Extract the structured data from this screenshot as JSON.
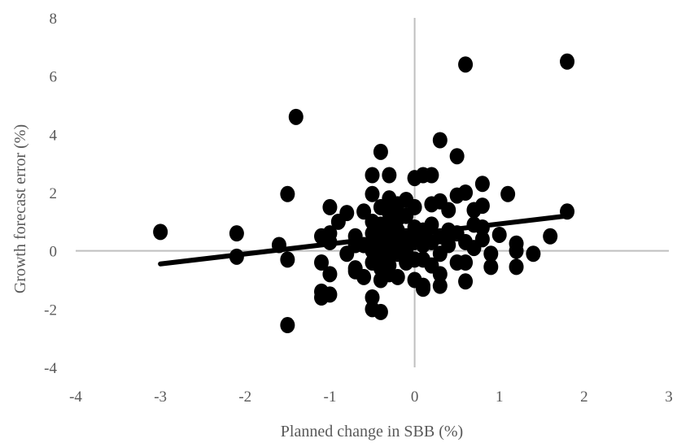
{
  "chart_data": {
    "type": "scatter",
    "title": "",
    "xlabel": "Planned change in SBB (%)",
    "ylabel": "Growth forecast error (%)",
    "xlim": [
      -4,
      3
    ],
    "ylim": [
      -4,
      8
    ],
    "xticks": [
      "-4",
      "-3",
      "-2",
      "-1",
      "0",
      "1",
      "2",
      "3"
    ],
    "yticks": [
      "-4",
      "-2",
      "0",
      "2",
      "4",
      "6",
      "8"
    ],
    "axis_color": "#bfbfbf",
    "marker_color": "#000000",
    "grid": false,
    "legend": "none",
    "trendline": {
      "x": [
        -3.0,
        1.8
      ],
      "y": [
        -0.45,
        1.2
      ]
    },
    "series": [
      {
        "points": [
          [
            -3.0,
            0.65
          ],
          [
            -2.1,
            0.6
          ],
          [
            -2.1,
            -0.2
          ],
          [
            -1.6,
            0.2
          ],
          [
            -1.5,
            -0.3
          ],
          [
            -1.5,
            1.95
          ],
          [
            -1.5,
            -2.55
          ],
          [
            -1.4,
            4.6
          ],
          [
            -1.1,
            0.5
          ],
          [
            -1.1,
            -0.4
          ],
          [
            -1.1,
            -1.4
          ],
          [
            -1.1,
            -1.6
          ],
          [
            -1.0,
            0.6
          ],
          [
            -1.0,
            0.3
          ],
          [
            -1.0,
            1.5
          ],
          [
            -1.0,
            -0.8
          ],
          [
            -1.0,
            -1.5
          ],
          [
            -0.9,
            1.0
          ],
          [
            -0.8,
            1.3
          ],
          [
            -0.8,
            -0.1
          ],
          [
            -0.7,
            0.5
          ],
          [
            -0.7,
            -0.6
          ],
          [
            -0.7,
            -0.7
          ],
          [
            -0.7,
            0.2
          ],
          [
            -0.6,
            1.35
          ],
          [
            -0.6,
            0.2
          ],
          [
            -0.6,
            -0.9
          ],
          [
            -0.5,
            2.6
          ],
          [
            -0.5,
            1.95
          ],
          [
            -0.5,
            1.0
          ],
          [
            -0.5,
            0.6
          ],
          [
            -0.5,
            0.3
          ],
          [
            -0.5,
            0.0
          ],
          [
            -0.5,
            -0.4
          ],
          [
            -0.5,
            -1.6
          ],
          [
            -0.5,
            -2.0
          ],
          [
            -0.4,
            3.4
          ],
          [
            -0.4,
            1.5
          ],
          [
            -0.4,
            0.9
          ],
          [
            -0.4,
            0.5
          ],
          [
            -0.4,
            0.2
          ],
          [
            -0.4,
            -0.2
          ],
          [
            -0.4,
            -0.6
          ],
          [
            -0.4,
            -1.0
          ],
          [
            -0.4,
            -2.1
          ],
          [
            -0.3,
            2.6
          ],
          [
            -0.3,
            1.8
          ],
          [
            -0.3,
            1.3
          ],
          [
            -0.3,
            0.8
          ],
          [
            -0.3,
            0.4
          ],
          [
            -0.3,
            0.0
          ],
          [
            -0.3,
            -0.5
          ],
          [
            -0.3,
            -0.8
          ],
          [
            -0.2,
            1.6
          ],
          [
            -0.2,
            1.1
          ],
          [
            -0.2,
            0.7
          ],
          [
            -0.2,
            0.3
          ],
          [
            -0.2,
            -0.1
          ],
          [
            -0.2,
            -0.9
          ],
          [
            -0.1,
            1.75
          ],
          [
            -0.1,
            1.2
          ],
          [
            -0.1,
            0.5
          ],
          [
            -0.1,
            0.0
          ],
          [
            -0.1,
            -0.4
          ],
          [
            0.0,
            2.5
          ],
          [
            0.0,
            1.5
          ],
          [
            0.0,
            0.8
          ],
          [
            0.0,
            0.3
          ],
          [
            0.0,
            -0.3
          ],
          [
            0.0,
            -1.0
          ],
          [
            0.1,
            2.6
          ],
          [
            0.1,
            0.7
          ],
          [
            0.1,
            0.2
          ],
          [
            0.1,
            -0.3
          ],
          [
            0.1,
            -1.2
          ],
          [
            0.1,
            -1.3
          ],
          [
            0.2,
            2.6
          ],
          [
            0.2,
            1.6
          ],
          [
            0.2,
            0.9
          ],
          [
            0.2,
            0.3
          ],
          [
            0.2,
            -0.5
          ],
          [
            0.3,
            3.8
          ],
          [
            0.3,
            1.7
          ],
          [
            0.3,
            0.5
          ],
          [
            0.3,
            -0.1
          ],
          [
            0.3,
            -0.8
          ],
          [
            0.3,
            -1.2
          ],
          [
            0.4,
            1.4
          ],
          [
            0.4,
            0.7
          ],
          [
            0.4,
            0.2
          ],
          [
            0.5,
            3.25
          ],
          [
            0.5,
            1.9
          ],
          [
            0.5,
            0.6
          ],
          [
            0.5,
            -0.4
          ],
          [
            0.6,
            6.4
          ],
          [
            0.6,
            2.0
          ],
          [
            0.6,
            0.3
          ],
          [
            0.6,
            -0.4
          ],
          [
            0.6,
            -1.05
          ],
          [
            0.7,
            1.4
          ],
          [
            0.7,
            0.9
          ],
          [
            0.7,
            0.1
          ],
          [
            0.8,
            2.3
          ],
          [
            0.8,
            1.55
          ],
          [
            0.8,
            0.8
          ],
          [
            0.8,
            0.4
          ],
          [
            0.9,
            -0.1
          ],
          [
            0.9,
            -0.55
          ],
          [
            1.0,
            0.55
          ],
          [
            1.1,
            1.95
          ],
          [
            1.2,
            0.25
          ],
          [
            1.2,
            0.0
          ],
          [
            1.2,
            -0.55
          ],
          [
            1.4,
            -0.1
          ],
          [
            1.6,
            0.5
          ],
          [
            1.8,
            6.5
          ],
          [
            1.8,
            1.35
          ]
        ]
      }
    ]
  }
}
